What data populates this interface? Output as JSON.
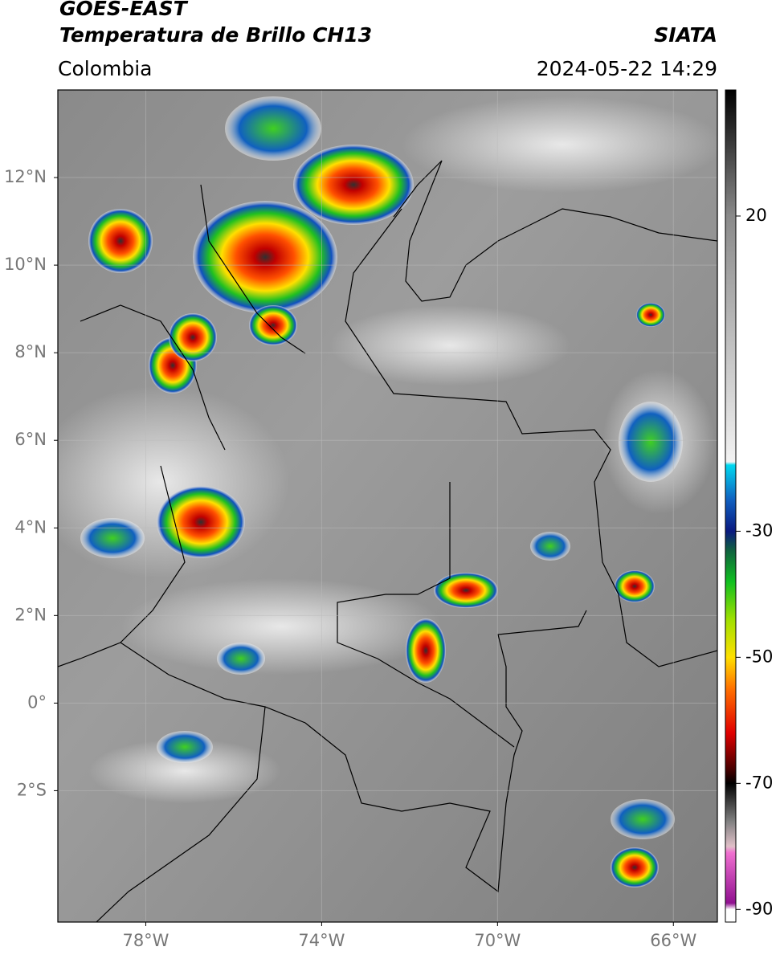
{
  "header": {
    "satellite": "GOES-EAST",
    "product": "Temperatura de Brillo CH13",
    "region": "Colombia",
    "source": "SIATA",
    "datetime": "2024-05-22 14:29"
  },
  "map": {
    "xlim": [
      -80,
      -65
    ],
    "ylim": [
      -5,
      14
    ],
    "xticks": [
      {
        "value": -78,
        "label": "78°W"
      },
      {
        "value": -74,
        "label": "74°W"
      },
      {
        "value": -70,
        "label": "70°W"
      },
      {
        "value": -66,
        "label": "66°W"
      }
    ],
    "yticks": [
      {
        "value": 12,
        "label": "12°N"
      },
      {
        "value": 10,
        "label": "10°N"
      },
      {
        "value": 8,
        "label": "8°N"
      },
      {
        "value": 6,
        "label": "6°N"
      },
      {
        "value": 4,
        "label": "4°N"
      },
      {
        "value": 2,
        "label": "2°N"
      },
      {
        "value": 0,
        "label": "0°"
      },
      {
        "value": -2,
        "label": "2°S"
      }
    ],
    "grid": true
  },
  "colorbar": {
    "lim": [
      -92,
      40
    ],
    "ticks": [
      20,
      -30,
      -50,
      -70,
      -90
    ],
    "stops": [
      {
        "value": 40,
        "color": "#000000"
      },
      {
        "value": 20,
        "color": "#8a8a8a"
      },
      {
        "value": -19,
        "color": "#f2f2f2"
      },
      {
        "value": -19.5,
        "color": "#00d8f0"
      },
      {
        "value": -25,
        "color": "#1060c0"
      },
      {
        "value": -30,
        "color": "#0a1a80"
      },
      {
        "value": -33,
        "color": "#106040"
      },
      {
        "value": -38,
        "color": "#10c020"
      },
      {
        "value": -44,
        "color": "#a0e000"
      },
      {
        "value": -50,
        "color": "#ffe000"
      },
      {
        "value": -55,
        "color": "#ff7000"
      },
      {
        "value": -62,
        "color": "#e00000"
      },
      {
        "value": -68,
        "color": "#400000"
      },
      {
        "value": -70,
        "color": "#000000"
      },
      {
        "value": -76,
        "color": "#808080"
      },
      {
        "value": -80,
        "color": "#e0c0c8"
      },
      {
        "value": -81,
        "color": "#f070d0"
      },
      {
        "value": -89,
        "color": "#901090"
      },
      {
        "value": -90,
        "color": "#ffffff"
      }
    ]
  }
}
